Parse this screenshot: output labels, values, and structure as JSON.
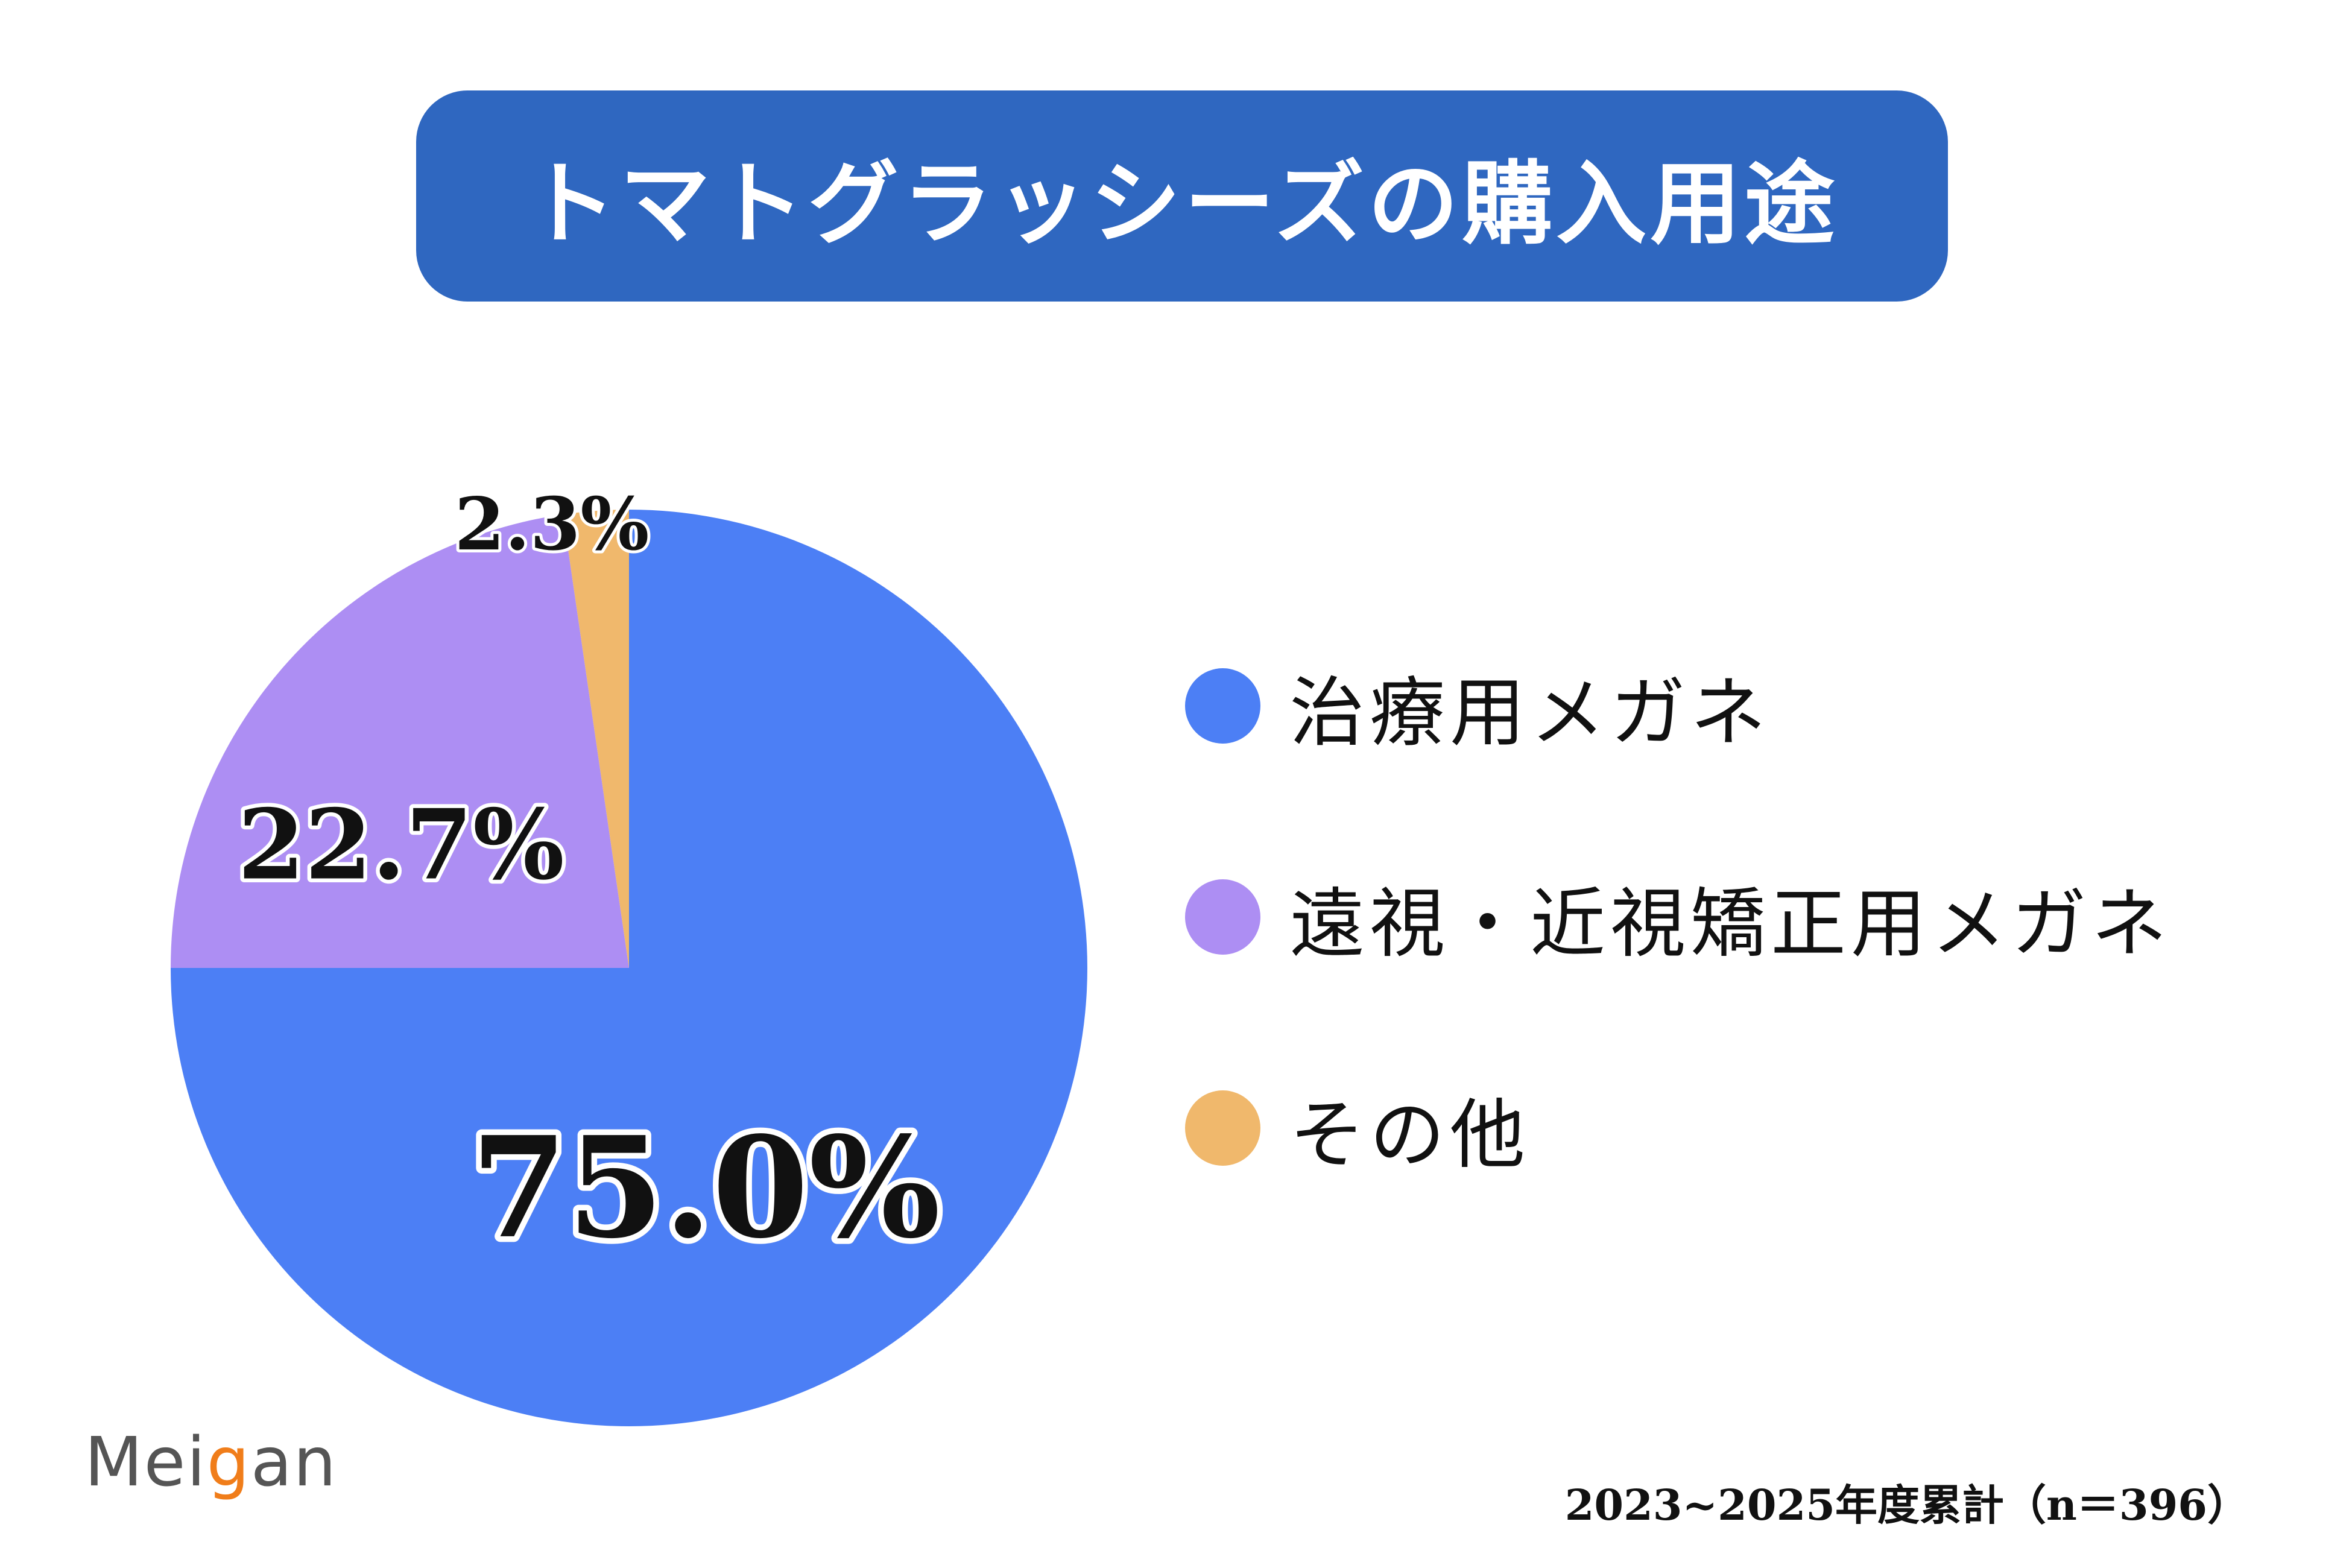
{
  "title": "トマトグラッシーズの購入用途",
  "colors": {
    "banner": "#2f67c0",
    "slice_1": "#4c7ff5",
    "slice_2": "#ad8ef3",
    "slice_3": "#f0b86c"
  },
  "chart_data": {
    "type": "pie",
    "title": "トマトグラッシーズの購入用途",
    "categories": [
      "治療用メガネ",
      "遠視・近視矯正用メガネ",
      "その他"
    ],
    "values": [
      75.0,
      22.7,
      2.3
    ],
    "value_labels": [
      "75.0%",
      "22.7%",
      "2.3%"
    ],
    "unit": "%",
    "legend_position": "right"
  },
  "logo": {
    "prefix": "Mei",
    "accent": "g",
    "suffix": "an"
  },
  "footnote": "2023~2025年度累計（n＝396）"
}
